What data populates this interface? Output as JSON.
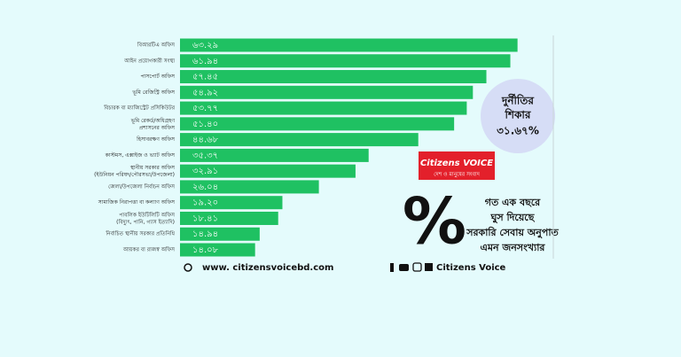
{
  "chart_data": {
    "type": "bar",
    "orientation": "horizontal",
    "categories": [
      "বিআরটিএ অফিস",
      "আইন প্রয়োগকারী সংস্থা",
      "পাসপোর্ট অফিস",
      "ভূমি রেজিস্ট্রি অফিস",
      "বিচারক বা ম্যাজিস্ট্রেট প্রসিকিউটর",
      "ভূমি রেকর্ড/অধিগ্রহণ\nপ্রশাসনের অফিস",
      "হিসাবরক্ষণ অফিস",
      "কাস্টমস, এক্সাইজ ও ভ্যাট অফিস",
      "স্থানীয় সরকার অফিস\n(ইউনিয়ন পরিষদ/পৌরসভা/উপজেলা)",
      "জেলা/উপজেলা নির্বাচন অফিস",
      "সামাজিক নিরাপত্তা বা কল্যাণ অফিস",
      "পাবলিক ইউটিলিটি অফিস\n(বিদ্যুৎ, পানি, গ্যাস ইত্যাদি)",
      "নির্বাচিত স্থানীয় সরকার প্রতিনিধি",
      "আয়কর বা রাজস্ব অফিস"
    ],
    "values": [
      63.29,
      61.94,
      57.45,
      54.92,
      53.77,
      51.4,
      44.68,
      35.37,
      32.91,
      26.04,
      19.2,
      18.41,
      14.94,
      14.08
    ],
    "value_labels": [
      "৬৩.২৯",
      "৬১.৯৪",
      "৫৭.৪৫",
      "৫৪.৯২",
      "৫৩.৭৭",
      "৫১.৪০",
      "৪৪.৬৮",
      "৩৫.৩৭",
      "৩২.৯১",
      "২৬.০৪",
      "১৯.২০",
      "১৮.৪১",
      "১৪.৯৪",
      "১৪.০৮"
    ],
    "color": "#1fc162",
    "xlim": [
      0,
      70
    ]
  },
  "badge": {
    "lines": [
      "দুর্নীতির",
      "শিকার",
      "৩১.৬৭%"
    ]
  },
  "logo": {
    "name": "Citizens VOICE",
    "tagline": "দেশ ও মানুষের সংবাদ"
  },
  "note": {
    "symbol": "%",
    "lines": [
      "গত এক বছরে",
      "ঘুস দিয়েছে",
      "সরকারি সেবায় অনুপাত",
      "এমন জনসংখ্যার"
    ]
  },
  "footer": {
    "website": "www. citizensvoicebd.com",
    "brand": "Citizens Voice"
  }
}
